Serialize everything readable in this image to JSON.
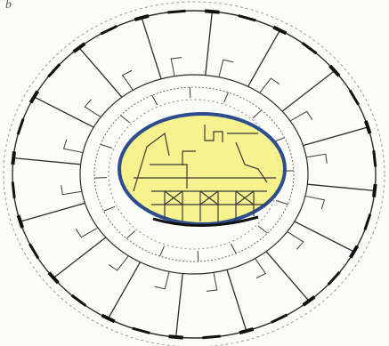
{
  "figure": {
    "letter": "b"
  },
  "colors": {
    "background": "#fbfbf8",
    "line": "#2b2b2b",
    "wall": "#111111",
    "highlight_fill": "#f4f07a",
    "highlight_stroke": "#2e4d8f"
  }
}
